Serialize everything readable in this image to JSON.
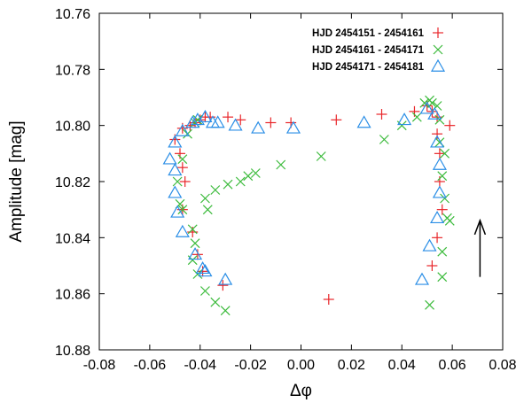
{
  "chart_data": {
    "type": "scatter",
    "title": "",
    "xlabel": "Δφ",
    "ylabel": "Amplitude [mag]",
    "xlim": [
      -0.08,
      0.08
    ],
    "ylim": [
      10.76,
      10.88
    ],
    "y_inverted": true,
    "x_ticks": [
      -0.08,
      -0.06,
      -0.04,
      -0.02,
      0.0,
      0.02,
      0.04,
      0.06,
      0.08
    ],
    "x_tick_labels": [
      "-0.08",
      "-0.06",
      "-0.04",
      "-0.02",
      "0.00",
      "0.02",
      "0.04",
      "0.06",
      "0.08"
    ],
    "y_ticks": [
      10.76,
      10.78,
      10.8,
      10.82,
      10.84,
      10.86,
      10.88
    ],
    "y_tick_labels": [
      "10.76",
      "10.78",
      "10.80",
      "10.82",
      "10.84",
      "10.86",
      "10.88"
    ],
    "legend_position": "top-right",
    "series": [
      {
        "name": "HJD 2454151 - 2454161",
        "marker": "plus",
        "color": "#e8262a",
        "points": [
          [
            -0.05,
            10.805
          ],
          [
            -0.048,
            10.81
          ],
          [
            -0.047,
            10.815
          ],
          [
            -0.046,
            10.82
          ],
          [
            -0.047,
            10.83
          ],
          [
            -0.043,
            10.838
          ],
          [
            -0.041,
            10.846
          ],
          [
            -0.039,
            10.852
          ],
          [
            -0.031,
            10.857
          ],
          [
            -0.047,
            10.801
          ],
          [
            -0.044,
            10.8
          ],
          [
            -0.042,
            10.799
          ],
          [
            -0.04,
            10.798
          ],
          [
            -0.038,
            10.797
          ],
          [
            -0.036,
            10.797
          ],
          [
            -0.029,
            10.797
          ],
          [
            -0.024,
            10.798
          ],
          [
            -0.012,
            10.799
          ],
          [
            -0.004,
            10.799
          ],
          [
            0.014,
            10.798
          ],
          [
            0.032,
            10.796
          ],
          [
            0.045,
            10.795
          ],
          [
            0.05,
            10.793
          ],
          [
            0.052,
            10.795
          ],
          [
            0.054,
            10.797
          ],
          [
            0.054,
            10.803
          ],
          [
            0.055,
            10.81
          ],
          [
            0.055,
            10.82
          ],
          [
            0.056,
            10.83
          ],
          [
            0.054,
            10.84
          ],
          [
            0.052,
            10.85
          ],
          [
            0.059,
            10.8
          ],
          [
            0.011,
            10.862
          ]
        ]
      },
      {
        "name": "HJD 2454161 - 2454171",
        "marker": "x",
        "color": "#3dbb3d",
        "points": [
          [
            -0.042,
            10.799
          ],
          [
            -0.041,
            10.798
          ],
          [
            -0.045,
            10.803
          ],
          [
            -0.047,
            10.812
          ],
          [
            -0.049,
            10.82
          ],
          [
            -0.048,
            10.828
          ],
          [
            -0.047,
            10.83
          ],
          [
            -0.043,
            10.837
          ],
          [
            -0.042,
            10.842
          ],
          [
            -0.043,
            10.848
          ],
          [
            -0.041,
            10.853
          ],
          [
            -0.038,
            10.859
          ],
          [
            -0.034,
            10.863
          ],
          [
            -0.03,
            10.866
          ],
          [
            -0.038,
            10.826
          ],
          [
            -0.037,
            10.83
          ],
          [
            -0.034,
            10.823
          ],
          [
            -0.029,
            10.821
          ],
          [
            -0.024,
            10.82
          ],
          [
            -0.021,
            10.818
          ],
          [
            -0.018,
            10.817
          ],
          [
            -0.008,
            10.814
          ],
          [
            0.008,
            10.811
          ],
          [
            0.033,
            10.805
          ],
          [
            0.04,
            10.8
          ],
          [
            0.046,
            10.797
          ],
          [
            0.049,
            10.792
          ],
          [
            0.051,
            10.791
          ],
          [
            0.052,
            10.792
          ],
          [
            0.054,
            10.793
          ],
          [
            0.055,
            10.798
          ],
          [
            0.055,
            10.806
          ],
          [
            0.057,
            10.81
          ],
          [
            0.056,
            10.818
          ],
          [
            0.057,
            10.826
          ],
          [
            0.058,
            10.833
          ],
          [
            0.059,
            10.834
          ],
          [
            0.056,
            10.845
          ],
          [
            0.056,
            10.854
          ],
          [
            0.051,
            10.864
          ]
        ]
      },
      {
        "name": "HJD 2454171 - 2454181",
        "marker": "triangle",
        "color": "#2a8ee6",
        "points": [
          [
            -0.047,
            10.802
          ],
          [
            -0.05,
            10.806
          ],
          [
            -0.052,
            10.812
          ],
          [
            -0.05,
            10.816
          ],
          [
            -0.05,
            10.824
          ],
          [
            -0.049,
            10.831
          ],
          [
            -0.047,
            10.838
          ],
          [
            -0.042,
            10.846
          ],
          [
            -0.039,
            10.851
          ],
          [
            -0.038,
            10.852
          ],
          [
            -0.03,
            10.855
          ],
          [
            -0.043,
            10.799
          ],
          [
            -0.041,
            10.798
          ],
          [
            -0.038,
            10.797
          ],
          [
            -0.035,
            10.799
          ],
          [
            -0.033,
            10.799
          ],
          [
            -0.026,
            10.8
          ],
          [
            -0.017,
            10.801
          ],
          [
            -0.003,
            10.801
          ],
          [
            0.025,
            10.799
          ],
          [
            0.041,
            10.798
          ],
          [
            0.05,
            10.794
          ],
          [
            0.053,
            10.796
          ],
          [
            0.054,
            10.806
          ],
          [
            0.055,
            10.814
          ],
          [
            0.055,
            10.824
          ],
          [
            0.054,
            10.833
          ],
          [
            0.051,
            10.843
          ],
          [
            0.048,
            10.855
          ]
        ]
      }
    ],
    "annotations": [
      {
        "type": "arrow",
        "direction": "up",
        "x": 0.071,
        "y_from": 10.854,
        "y_to": 10.837
      }
    ]
  }
}
